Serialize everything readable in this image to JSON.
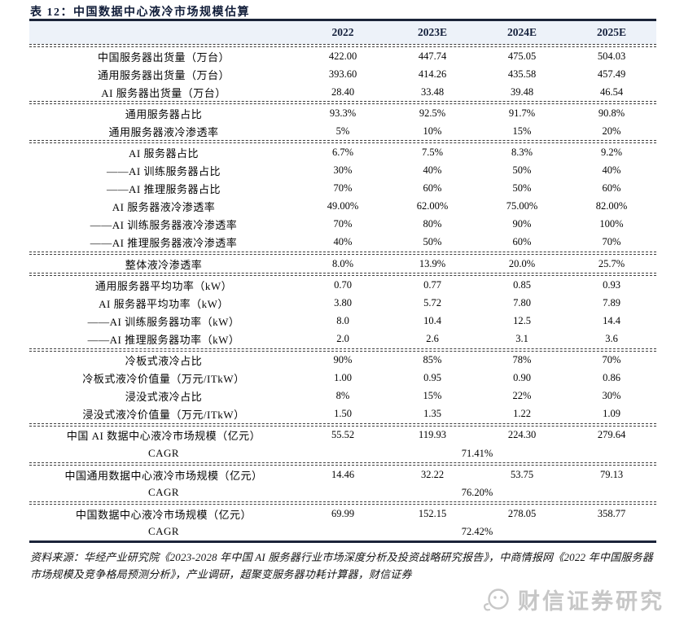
{
  "document": {
    "title": "表 12：中国数据中心液冷市场规模估算",
    "footnote": "资料来源：华经产业研究院《2023-2028 年中国 AI 服务器行业市场深度分析及投资战略研究报告》，中商情报网《2022 年中国服务器市场规模及竞争格局预测分析》，产业调研，超聚变服务器功耗计算器，财信证券",
    "watermark": "财信证券研究"
  },
  "chart_data": {
    "type": "table",
    "title": "表 12：中国数据中心液冷市场规模估算",
    "columns": [
      "",
      "2022",
      "2023E",
      "2024E",
      "2025E"
    ],
    "rows": [
      {
        "label": "中国服务器出货量（万台）",
        "values": [
          "422.00",
          "447.74",
          "475.05",
          "504.03"
        ]
      },
      {
        "label": "通用服务器出货量（万台）",
        "values": [
          "393.60",
          "414.26",
          "435.58",
          "457.49"
        ]
      },
      {
        "label": "AI 服务器出货量（万台）",
        "values": [
          "28.40",
          "33.48",
          "39.48",
          "46.54"
        ],
        "divider_after": true
      },
      {
        "label": "通用服务器占比",
        "values": [
          "93.3%",
          "92.5%",
          "91.7%",
          "90.8%"
        ]
      },
      {
        "label": "通用服务器液冷渗透率",
        "values": [
          "5%",
          "10%",
          "15%",
          "20%"
        ],
        "divider_after": true
      },
      {
        "label": "AI 服务器占比",
        "values": [
          "6.7%",
          "7.5%",
          "8.3%",
          "9.2%"
        ]
      },
      {
        "label": "——AI 训练服务器占比",
        "values": [
          "30%",
          "40%",
          "50%",
          "40%"
        ]
      },
      {
        "label": "——AI 推理服务器占比",
        "values": [
          "70%",
          "60%",
          "50%",
          "60%"
        ]
      },
      {
        "label": "AI 服务器液冷渗透率",
        "values": [
          "49.00%",
          "62.00%",
          "75.00%",
          "82.00%"
        ]
      },
      {
        "label": "——AI 训练服务器液冷渗透率",
        "values": [
          "70%",
          "80%",
          "90%",
          "100%"
        ]
      },
      {
        "label": "——AI 推理服务器液冷渗透率",
        "values": [
          "40%",
          "50%",
          "60%",
          "70%"
        ],
        "divider_after": true
      },
      {
        "label": "整体液冷渗透率",
        "values": [
          "8.0%",
          "13.9%",
          "20.0%",
          "25.7%"
        ],
        "divider_after": true
      },
      {
        "label": "通用服务器平均功率（kW）",
        "values": [
          "0.70",
          "0.77",
          "0.85",
          "0.93"
        ]
      },
      {
        "label": "AI 服务器平均功率（kW）",
        "values": [
          "3.80",
          "5.72",
          "7.80",
          "7.89"
        ]
      },
      {
        "label": "——AI 训练服务器功率（kW）",
        "values": [
          "8.0",
          "10.4",
          "12.5",
          "14.4"
        ]
      },
      {
        "label": "——AI 推理服务器功率（kW）",
        "values": [
          "2.0",
          "2.6",
          "3.1",
          "3.6"
        ],
        "divider_after": true
      },
      {
        "label": "冷板式液冷占比",
        "values": [
          "90%",
          "85%",
          "78%",
          "70%"
        ]
      },
      {
        "label": "冷板式液冷价值量（万元/ITkW）",
        "values": [
          "1.00",
          "0.95",
          "0.90",
          "0.86"
        ]
      },
      {
        "label": "浸没式液冷占比",
        "values": [
          "8%",
          "15%",
          "22%",
          "30%"
        ]
      },
      {
        "label": "浸没式液冷价值量（万元/ITkW）",
        "values": [
          "1.50",
          "1.35",
          "1.22",
          "1.09"
        ],
        "divider_after": true
      },
      {
        "label": "中国 AI 数据中心液冷市场规模（亿元）",
        "values": [
          "55.52",
          "119.93",
          "224.30",
          "279.64"
        ]
      },
      {
        "label": "CAGR",
        "span_value": "71.41%",
        "divider_after": true
      },
      {
        "label": "中国通用数据中心液冷市场规模（亿元）",
        "values": [
          "14.46",
          "32.22",
          "53.75",
          "79.13"
        ]
      },
      {
        "label": "CAGR",
        "span_value": "76.20%",
        "divider_after": true
      },
      {
        "label": "中国数据中心液冷市场规模（亿元）",
        "values": [
          "69.99",
          "152.15",
          "278.05",
          "358.77"
        ]
      },
      {
        "label": "CAGR",
        "span_value": "72.42%"
      }
    ]
  }
}
